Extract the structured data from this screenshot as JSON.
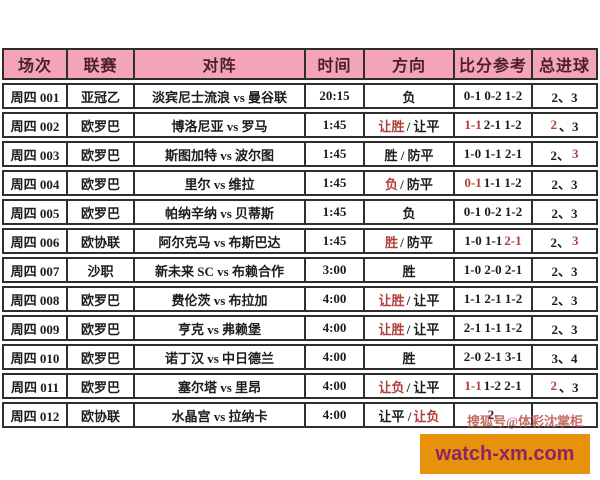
{
  "colors": {
    "header_bg": "#f3a4b6",
    "header_text": "#4d1f2a",
    "highlight": "#b0403a",
    "border": "#2e2e2e",
    "banner_bg": "#e8920b",
    "banner_text": "#8b2566",
    "watermark_color": "#bb5348"
  },
  "watermark": {
    "overlay_text": "搜狐号@体彩沈掌柜",
    "site": "watch-xm.com"
  },
  "table": {
    "headers": [
      "场次",
      "联赛",
      "对阵",
      "时间",
      "方向",
      "比分参考",
      "总进球"
    ],
    "header_keys": [
      "match-id",
      "league",
      "matchup",
      "time",
      "direction",
      "score-ref",
      "total-goals"
    ],
    "rows": [
      {
        "id": "周四 001",
        "league": "亚冠乙",
        "match": "淡宾尼士流浪 vs 曼谷联",
        "time": "20:15",
        "direction": [
          {
            "t": "负"
          }
        ],
        "score": [
          {
            "t": "0-1 0-2 1-2"
          }
        ],
        "goals": [
          {
            "t": "2、3"
          }
        ]
      },
      {
        "id": "周四 002",
        "league": "欧罗巴",
        "match": "博洛尼亚 vs 罗马",
        "time": "1:45",
        "direction": [
          {
            "t": "让胜",
            "red": true
          },
          {
            "t": " / 让平"
          }
        ],
        "score": [
          {
            "t": "1-1",
            "red": true
          },
          {
            "t": " 2-1 1-2"
          }
        ],
        "goals": [
          {
            "t": "2",
            "red": true
          },
          {
            "t": "、3"
          }
        ]
      },
      {
        "id": "周四 003",
        "league": "欧罗巴",
        "match": "斯图加特 vs 波尔图",
        "time": "1:45",
        "direction": [
          {
            "t": "胜 / 防平"
          }
        ],
        "score": [
          {
            "t": "1-0 1-1 2-1"
          }
        ],
        "goals": [
          {
            "t": "2、"
          },
          {
            "t": "3",
            "red": true
          }
        ]
      },
      {
        "id": "周四 004",
        "league": "欧罗巴",
        "match": "里尔 vs 维拉",
        "time": "1:45",
        "direction": [
          {
            "t": "负",
            "red": true
          },
          {
            "t": " / 防平"
          }
        ],
        "score": [
          {
            "t": "0-1",
            "red": true
          },
          {
            "t": " 1-1 1-2"
          }
        ],
        "goals": [
          {
            "t": "2、3"
          }
        ]
      },
      {
        "id": "周四 005",
        "league": "欧罗巴",
        "match": "帕纳辛纳 vs 贝蒂斯",
        "time": "1:45",
        "direction": [
          {
            "t": "负"
          }
        ],
        "score": [
          {
            "t": "0-1 0-2 1-2"
          }
        ],
        "goals": [
          {
            "t": "2、3"
          }
        ]
      },
      {
        "id": "周四 006",
        "league": "欧协联",
        "match": "阿尔克马 vs 布斯巴达",
        "time": "1:45",
        "direction": [
          {
            "t": "胜",
            "red": true
          },
          {
            "t": " / 防平"
          }
        ],
        "score": [
          {
            "t": "1-0 1-1 "
          },
          {
            "t": "2-1",
            "red": true
          }
        ],
        "goals": [
          {
            "t": "2、"
          },
          {
            "t": "3",
            "red": true
          }
        ]
      },
      {
        "id": "周四 007",
        "league": "沙职",
        "match": "新未来 SC vs 布赖合作",
        "time": "3:00",
        "direction": [
          {
            "t": "胜"
          }
        ],
        "score": [
          {
            "t": "1-0 2-0 2-1"
          }
        ],
        "goals": [
          {
            "t": "2、3"
          }
        ]
      },
      {
        "id": "周四 008",
        "league": "欧罗巴",
        "match": "费伦茨 vs 布拉加",
        "time": "4:00",
        "direction": [
          {
            "t": "让胜",
            "red": true
          },
          {
            "t": " / 让平"
          }
        ],
        "score": [
          {
            "t": "1-1 2-1 1-2"
          }
        ],
        "goals": [
          {
            "t": "2、3"
          }
        ]
      },
      {
        "id": "周四 009",
        "league": "欧罗巴",
        "match": "亨克 vs 弗赖堡",
        "time": "4:00",
        "direction": [
          {
            "t": "让胜",
            "red": true
          },
          {
            "t": " / 让平"
          }
        ],
        "score": [
          {
            "t": "2-1 1-1 1-2"
          }
        ],
        "goals": [
          {
            "t": "2、3"
          }
        ]
      },
      {
        "id": "周四 010",
        "league": "欧罗巴",
        "match": "诺丁汉 vs 中日德兰",
        "time": "4:00",
        "direction": [
          {
            "t": "胜"
          }
        ],
        "score": [
          {
            "t": "2-0 2-1 3-1"
          }
        ],
        "goals": [
          {
            "t": "3、4"
          }
        ]
      },
      {
        "id": "周四 011",
        "league": "欧罗巴",
        "match": "塞尔塔 vs 里昂",
        "time": "4:00",
        "direction": [
          {
            "t": "让负",
            "red": true
          },
          {
            "t": " / 让平"
          }
        ],
        "score": [
          {
            "t": "1-1",
            "red": true
          },
          {
            "t": " 1-2 2-1"
          }
        ],
        "goals": [
          {
            "t": "2",
            "red": true
          },
          {
            "t": "、3"
          }
        ]
      },
      {
        "id": "周四 012",
        "league": "欧协联",
        "match": "水晶宫 vs 拉纳卡",
        "time": "4:00",
        "direction": [
          {
            "t": "让平 / "
          },
          {
            "t": "让负",
            "red": true
          }
        ],
        "score": [
          {
            "t": "2-"
          }
        ],
        "goals": [
          {
            "t": ""
          }
        ]
      }
    ]
  },
  "chart_data": {
    "type": "table",
    "title": "",
    "columns": [
      "场次",
      "联赛",
      "对阵",
      "时间",
      "方向",
      "比分参考",
      "总进球"
    ],
    "rows": [
      [
        "周四 001",
        "亚冠乙",
        "淡宾尼士流浪 vs 曼谷联",
        "20:15",
        "负",
        "0-1 0-2 1-2",
        "2、3"
      ],
      [
        "周四 002",
        "欧罗巴",
        "博洛尼亚 vs 罗马",
        "1:45",
        "让胜 / 让平",
        "1-1 2-1 1-2",
        "2、3"
      ],
      [
        "周四 003",
        "欧罗巴",
        "斯图加特 vs 波尔图",
        "1:45",
        "胜 / 防平",
        "1-0 1-1 2-1",
        "2、3"
      ],
      [
        "周四 004",
        "欧罗巴",
        "里尔 vs 维拉",
        "1:45",
        "负 / 防平",
        "0-1 1-1 1-2",
        "2、3"
      ],
      [
        "周四 005",
        "欧罗巴",
        "帕纳辛纳 vs 贝蒂斯",
        "1:45",
        "负",
        "0-1 0-2 1-2",
        "2、3"
      ],
      [
        "周四 006",
        "欧协联",
        "阿尔克马 vs 布斯巴达",
        "1:45",
        "胜 / 防平",
        "1-0 1-1 2-1",
        "2、3"
      ],
      [
        "周四 007",
        "沙职",
        "新未来 SC vs 布赖合作",
        "3:00",
        "胜",
        "1-0 2-0 2-1",
        "2、3"
      ],
      [
        "周四 008",
        "欧罗巴",
        "费伦茨 vs 布拉加",
        "4:00",
        "让胜 / 让平",
        "1-1 2-1 1-2",
        "2、3"
      ],
      [
        "周四 009",
        "欧罗巴",
        "亨克 vs 弗赖堡",
        "4:00",
        "让胜 / 让平",
        "2-1 1-1 1-2",
        "2、3"
      ],
      [
        "周四 010",
        "欧罗巴",
        "诺丁汉 vs 中日德兰",
        "4:00",
        "胜",
        "2-0 2-1 3-1",
        "3、4"
      ],
      [
        "周四 011",
        "欧罗巴",
        "塞尔塔 vs 里昂",
        "4:00",
        "让负 / 让平",
        "1-1 1-2 2-1",
        "2、3"
      ],
      [
        "周四 012",
        "欧协联",
        "水晶宫 vs 拉纳卡",
        "4:00",
        "让平 / 让负",
        "2-（被水印遮挡）",
        ""
      ]
    ],
    "highlighted_cells_note": "red-highlighted segments: r2(让胜,1-1,2) r3(3) r4(负,0-1) r6(胜,2-1,3) r8(让胜) r9(让胜) r11(让负,1-1,2) r12(让负)"
  }
}
